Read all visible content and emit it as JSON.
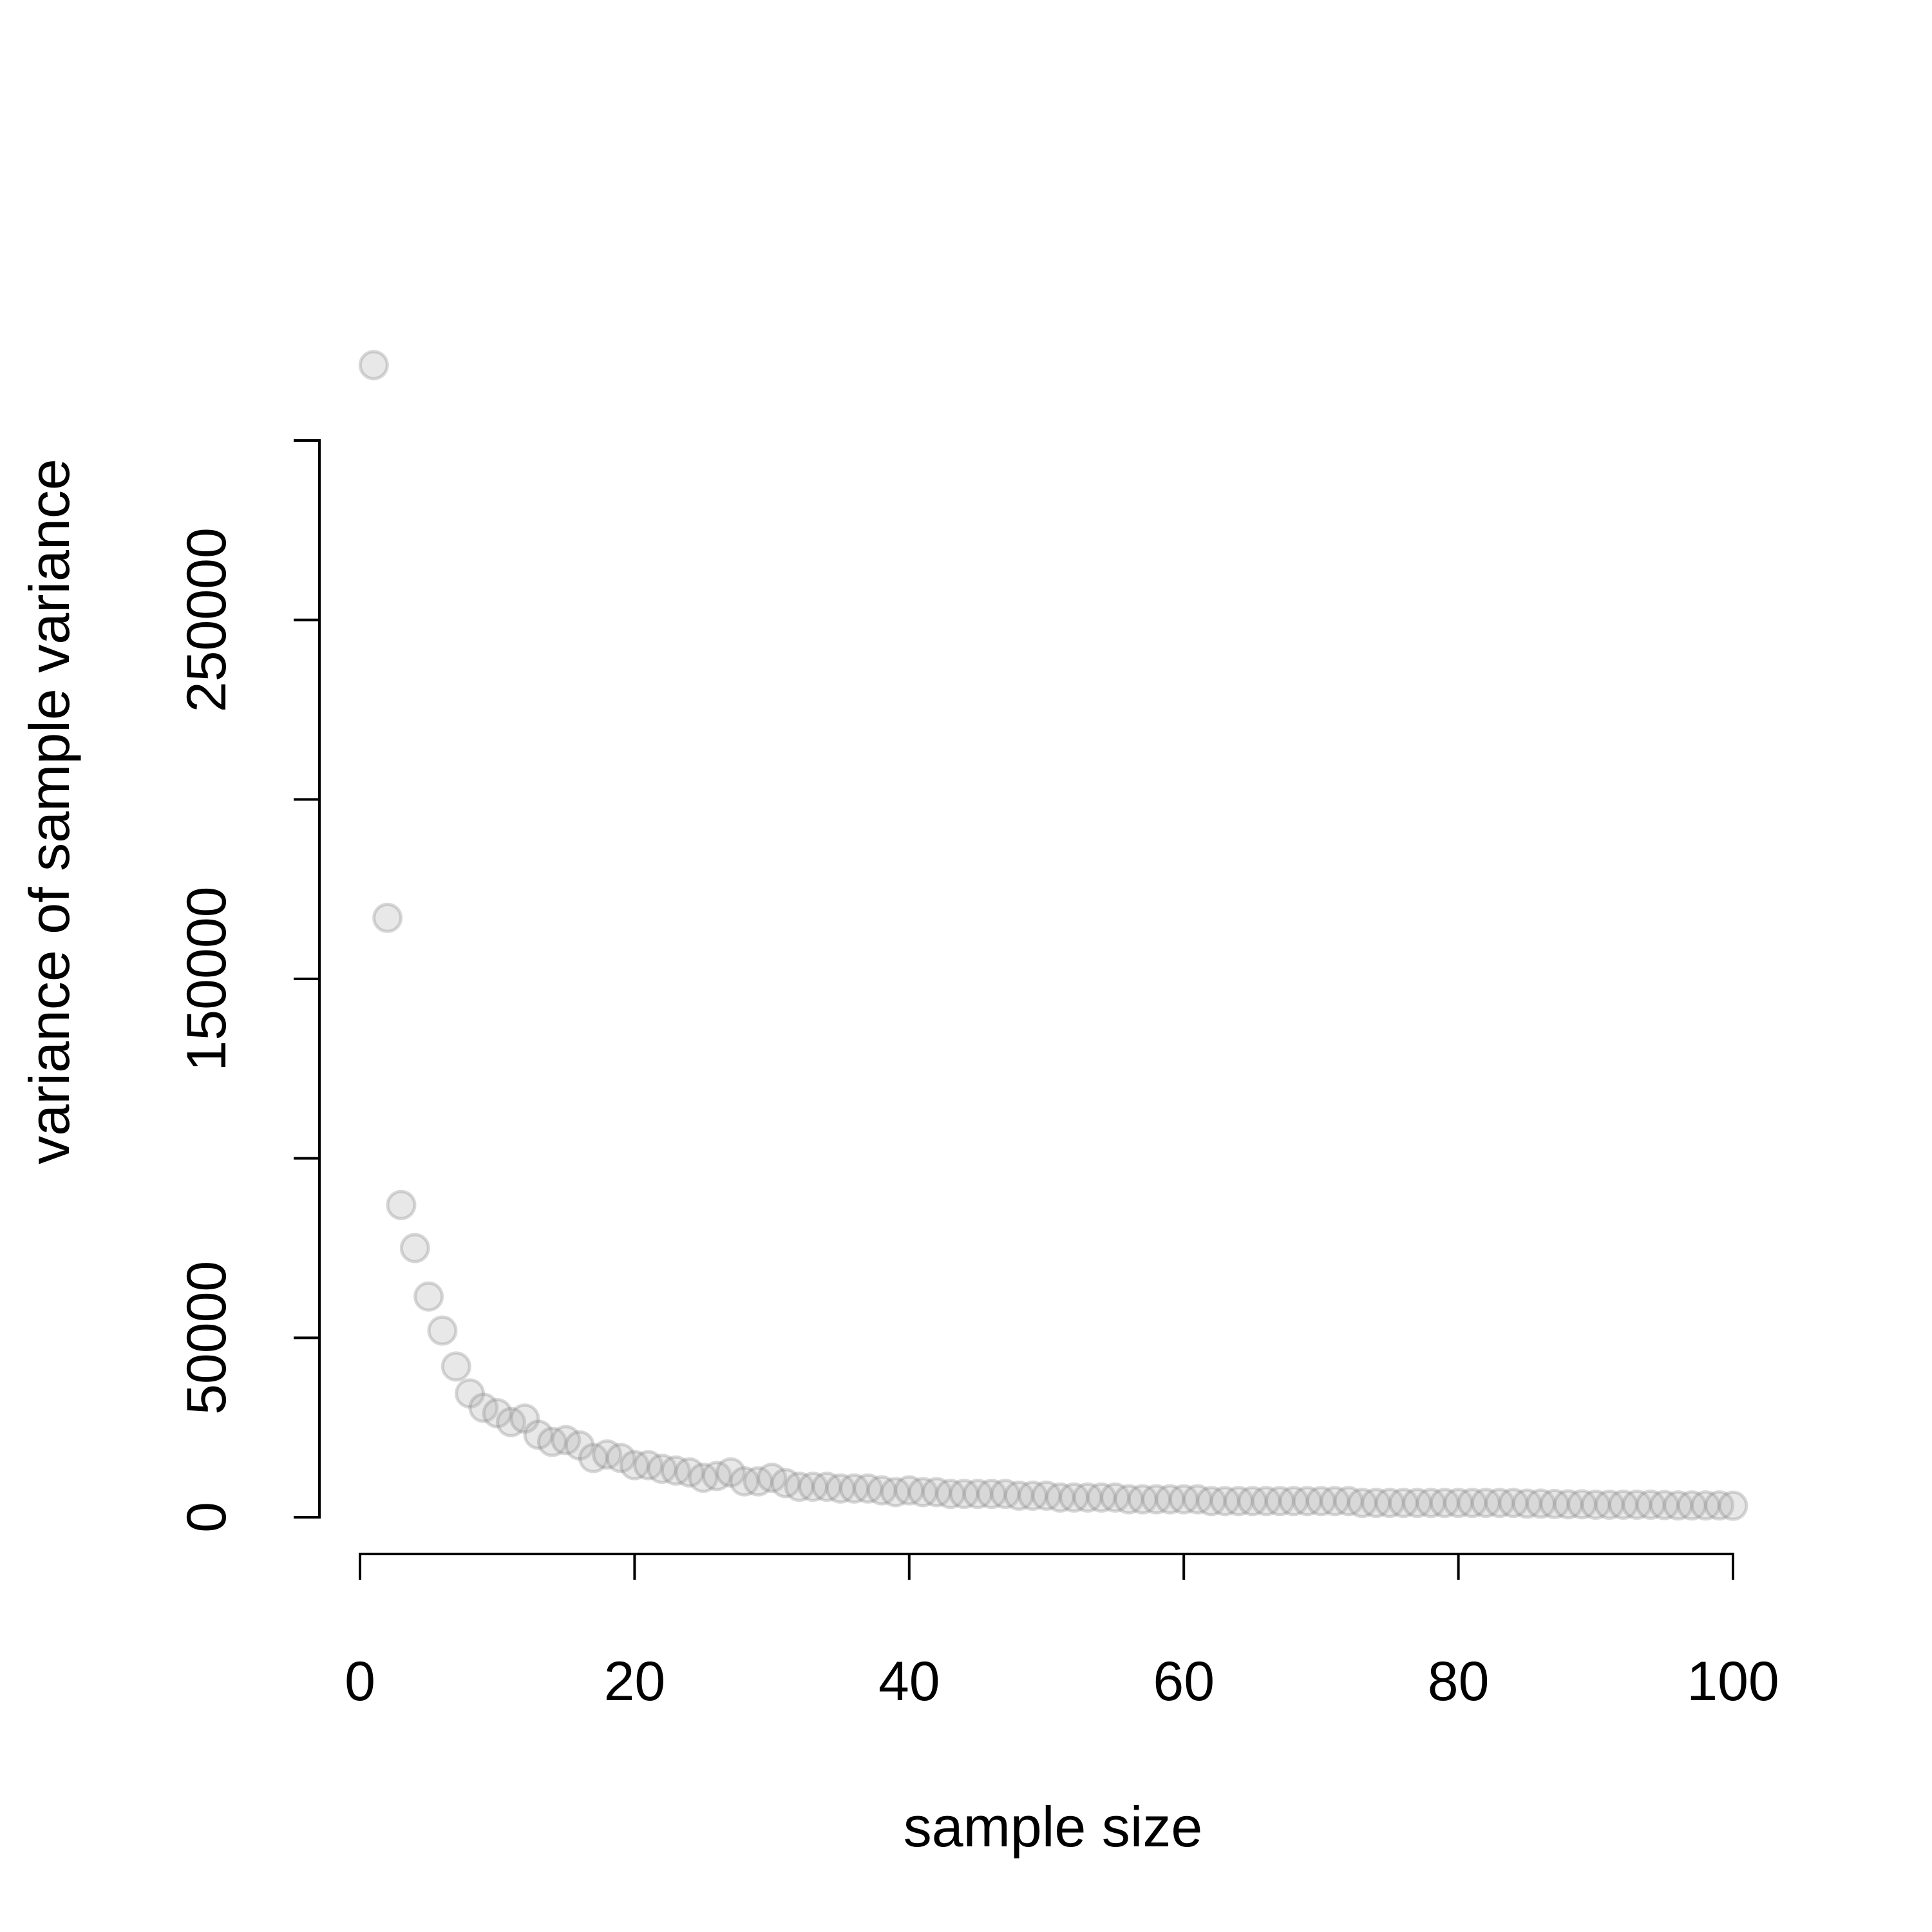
{
  "chart_data": {
    "type": "scatter",
    "xlabel": "sample size",
    "ylabel": "variance of sample variance",
    "xlim": [
      0,
      100
    ],
    "ylim": [
      0,
      300000
    ],
    "x_ticks": [
      0,
      20,
      40,
      60,
      80,
      100
    ],
    "y_ticks": [
      0,
      50000,
      100000,
      150000,
      200000,
      250000,
      300000
    ],
    "y_tick_labels": [
      "0",
      "50000",
      "",
      "150000",
      "",
      "250000",
      ""
    ],
    "grid": false,
    "point_fill": "#b3b3b3",
    "point_stroke": "#7f7f7f",
    "x": [
      1,
      2,
      3,
      4,
      5,
      6,
      7,
      8,
      9,
      10,
      11,
      12,
      13,
      14,
      15,
      16,
      17,
      18,
      19,
      20,
      21,
      22,
      23,
      24,
      25,
      26,
      27,
      28,
      29,
      30,
      31,
      32,
      33,
      34,
      35,
      36,
      37,
      38,
      39,
      40,
      41,
      42,
      43,
      44,
      45,
      46,
      47,
      48,
      49,
      50,
      51,
      52,
      53,
      54,
      55,
      56,
      57,
      58,
      59,
      60,
      61,
      62,
      63,
      64,
      65,
      66,
      67,
      68,
      69,
      70,
      71,
      72,
      73,
      74,
      75,
      76,
      77,
      78,
      79,
      80,
      81,
      82,
      83,
      84,
      85,
      86,
      87,
      88,
      89,
      90,
      91,
      92,
      93,
      94,
      95,
      96,
      97,
      98,
      99,
      100
    ],
    "y": [
      321000,
      167000,
      87000,
      75000,
      61500,
      52000,
      42000,
      34500,
      30500,
      29000,
      26500,
      27500,
      23000,
      21000,
      21500,
      20000,
      16500,
      17500,
      16500,
      14500,
      14500,
      13500,
      13000,
      12500,
      11000,
      11500,
      12500,
      10000,
      10000,
      11000,
      9500,
      8500,
      8500,
      8500,
      8000,
      8000,
      8000,
      7500,
      7000,
      7500,
      7000,
      7000,
      6500,
      6500,
      6500,
      6500,
      6500,
      6000,
      6000,
      6000,
      5500,
      5500,
      5500,
      5500,
      5500,
      5000,
      5000,
      5000,
      5000,
      5000,
      5000,
      4500,
      4500,
      4500,
      4500,
      4500,
      4500,
      4500,
      4500,
      4500,
      4500,
      4500,
      4000,
      4000,
      4000,
      4000,
      4000,
      4000,
      4000,
      4000,
      4000,
      4000,
      4000,
      4000,
      3800,
      3800,
      3700,
      3600,
      3600,
      3500,
      3500,
      3500,
      3500,
      3500,
      3400,
      3300,
      3300,
      3300,
      3300,
      3200
    ]
  }
}
